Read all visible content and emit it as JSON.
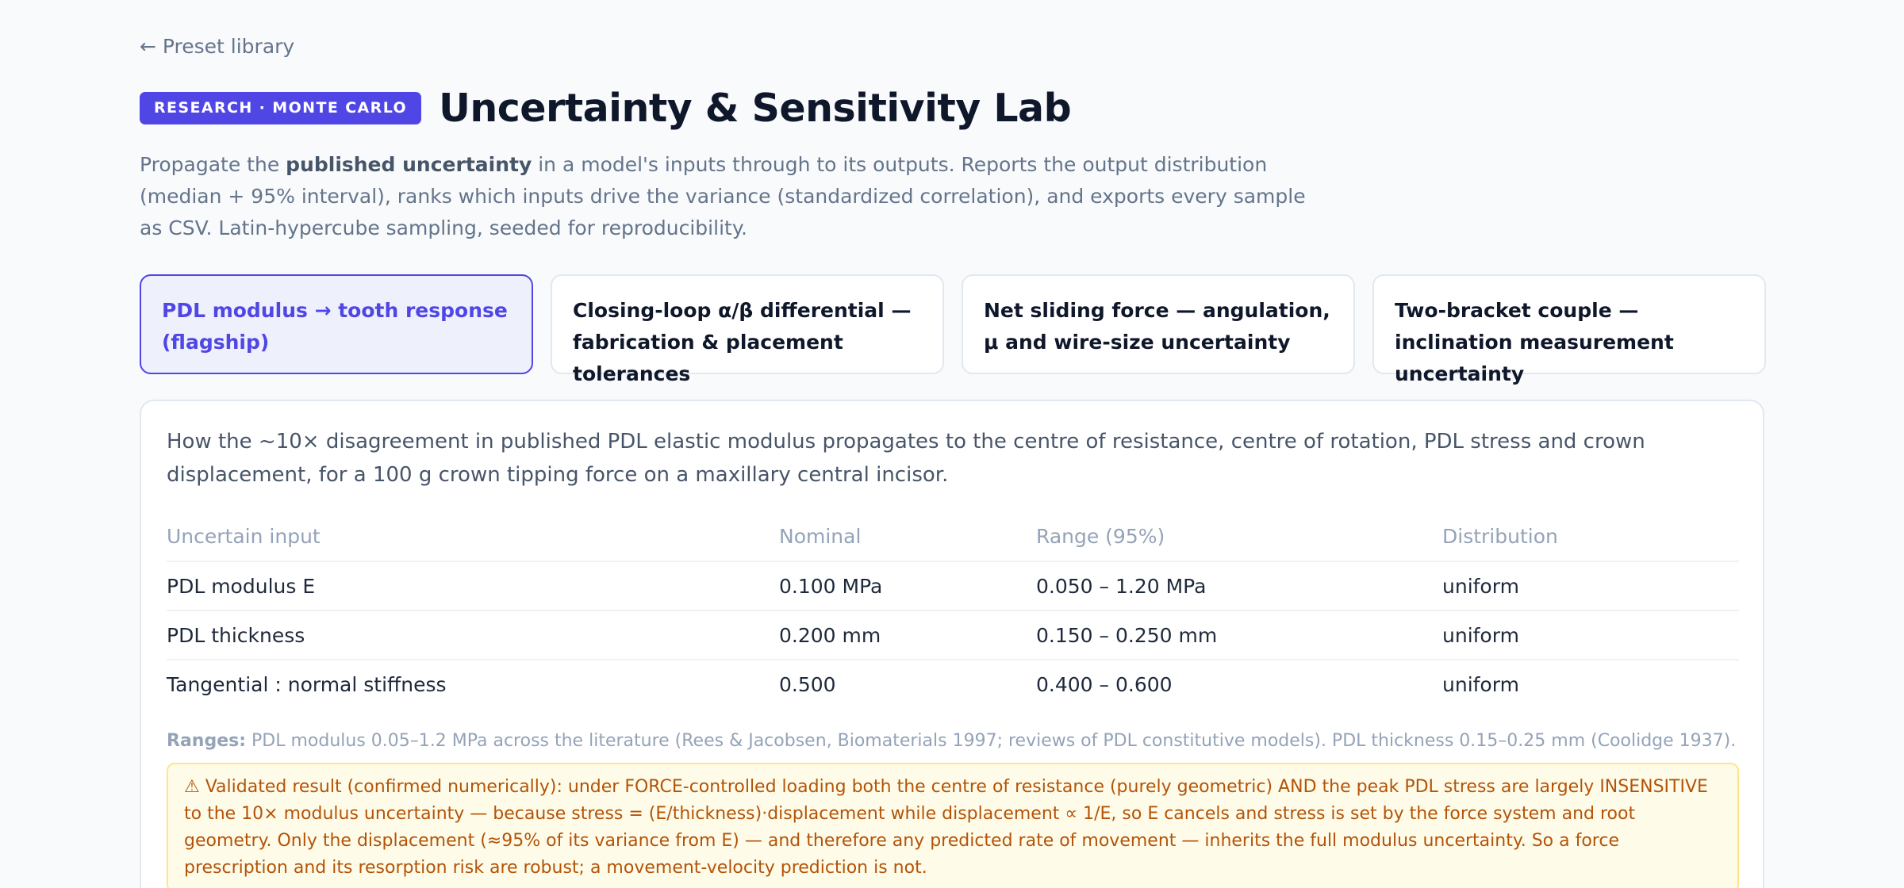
{
  "nav": {
    "back_label": "← Preset library"
  },
  "header": {
    "badge": "RESEARCH · MONTE CARLO",
    "title": "Uncertainty & Sensitivity Lab"
  },
  "intro": {
    "pre": "Propagate the ",
    "bold": "published uncertainty",
    "post": " in a model's inputs through to its outputs. Reports the output distribution (median + 95% interval), ranks which inputs drive the variance (standardized correlation), and exports every sample as CSV. Latin-hypercube sampling, seeded for reproducibility."
  },
  "presets": [
    {
      "label": "PDL modulus → tooth response (flagship)",
      "active": true
    },
    {
      "label": "Closing-loop α/β differential — fabrication & placement tolerances",
      "active": false
    },
    {
      "label": "Net sliding force — angulation, μ and wire-size uncertainty",
      "active": false
    },
    {
      "label": "Two-bracket couple — inclination measurement uncertainty",
      "active": false
    }
  ],
  "card": {
    "description": "How the ~10× disagreement in published PDL elastic modulus propagates to the centre of resistance, centre of rotation, PDL stress and crown displacement, for a 100 g crown tipping force on a maxillary central incisor.",
    "table": {
      "headers": [
        "Uncertain input",
        "Nominal",
        "Range (95%)",
        "Distribution"
      ],
      "rows": [
        [
          "PDL modulus E",
          "0.100 MPa",
          "0.050 – 1.20 MPa",
          "uniform"
        ],
        [
          "PDL thickness",
          "0.200 mm",
          "0.150 – 0.250 mm",
          "uniform"
        ],
        [
          "Tangential : normal stiffness",
          "0.500",
          "0.400 – 0.600",
          "uniform"
        ]
      ]
    },
    "ranges_label": "Ranges:",
    "ranges_text": " PDL modulus 0.05–1.2 MPa across the literature (Rees & Jacobsen, Biomaterials 1997; reviews of PDL constitutive models). PDL thickness 0.15–0.25 mm (Coolidge 1937).",
    "warning": "⚠ Validated result (confirmed numerically): under FORCE-controlled loading both the centre of resistance (purely geometric) AND the peak PDL stress are largely INSENSITIVE to the 10× modulus uncertainty — because stress = (E/thickness)·displacement while displacement ∝ 1/E, so E cancels and stress is set by the force system and root geometry. Only the displacement (≈95% of its variance from E) — and therefore any predicted rate of movement — inherits the full modulus uncertainty. So a force prescription and its resorption risk are robust; a movement-velocity prediction is not."
  },
  "colors": {
    "accent": "#4f46e5",
    "background": "#f8fafc",
    "warning_bg": "#fefce8",
    "warning_text": "#b45309"
  }
}
